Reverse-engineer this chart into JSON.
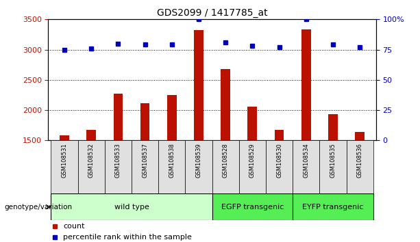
{
  "title": "GDS2099 / 1417785_at",
  "samples": [
    "GSM108531",
    "GSM108532",
    "GSM108533",
    "GSM108537",
    "GSM108538",
    "GSM108539",
    "GSM108528",
    "GSM108529",
    "GSM108530",
    "GSM108534",
    "GSM108535",
    "GSM108536"
  ],
  "counts": [
    1580,
    1670,
    2270,
    2115,
    2255,
    3320,
    2680,
    2060,
    1670,
    3330,
    1930,
    1640
  ],
  "percentiles": [
    75,
    76,
    80,
    79,
    79,
    100,
    81,
    78,
    77,
    100,
    79,
    77
  ],
  "groups": [
    {
      "label": "wild type",
      "start": 0,
      "end": 6,
      "color": "#ccffcc"
    },
    {
      "label": "EGFP transgenic",
      "start": 6,
      "end": 9,
      "color": "#55ee55"
    },
    {
      "label": "EYFP transgenic",
      "start": 9,
      "end": 12,
      "color": "#55ee55"
    }
  ],
  "bar_color": "#bb1100",
  "dot_color": "#0000bb",
  "ylim_left": [
    1500,
    3500
  ],
  "ylim_right": [
    0,
    100
  ],
  "yticks_left": [
    1500,
    2000,
    2500,
    3000,
    3500
  ],
  "yticks_right": [
    0,
    25,
    50,
    75,
    100
  ],
  "yticklabels_right": [
    "0",
    "25",
    "50",
    "75",
    "100%"
  ],
  "grid_values": [
    2000,
    2500,
    3000
  ],
  "background_color": "#ffffff",
  "genotype_label": "genotype/variation"
}
